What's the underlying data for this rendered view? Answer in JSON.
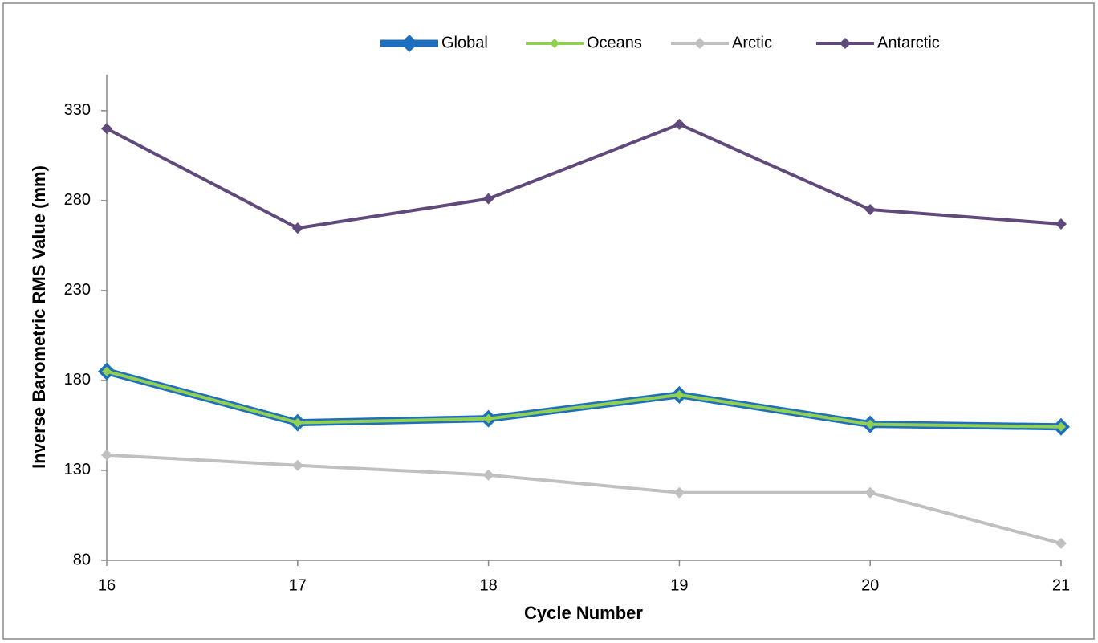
{
  "chart_data": {
    "type": "line",
    "x": [
      16,
      17,
      18,
      19,
      20,
      21
    ],
    "series": [
      {
        "name": "Global",
        "color": "#1f6fbf",
        "values": [
          185,
          156.5,
          158.7,
          172,
          155.6,
          154.2
        ]
      },
      {
        "name": "Oceans",
        "color": "#92d050",
        "values": [
          185,
          156.5,
          158.7,
          172,
          155.6,
          154.2
        ]
      },
      {
        "name": "Arctic",
        "color": "#c0c0c0",
        "values": [
          138.6,
          132.8,
          127.4,
          117.6,
          117.6,
          89.4
        ]
      },
      {
        "name": "Antarctic",
        "color": "#604a7b",
        "values": [
          320,
          264.7,
          281,
          322.4,
          275,
          267
        ]
      }
    ],
    "xlabel": "Cycle Number",
    "ylabel": "Inverse Barometric RMS Value (mm)",
    "xlim": [
      16,
      21
    ],
    "xticks": [
      16,
      17,
      18,
      19,
      20,
      21
    ],
    "ylim": [
      80,
      350
    ],
    "yticks": [
      80,
      130,
      180,
      230,
      280,
      330
    ],
    "grid": false,
    "legend": "top"
  }
}
